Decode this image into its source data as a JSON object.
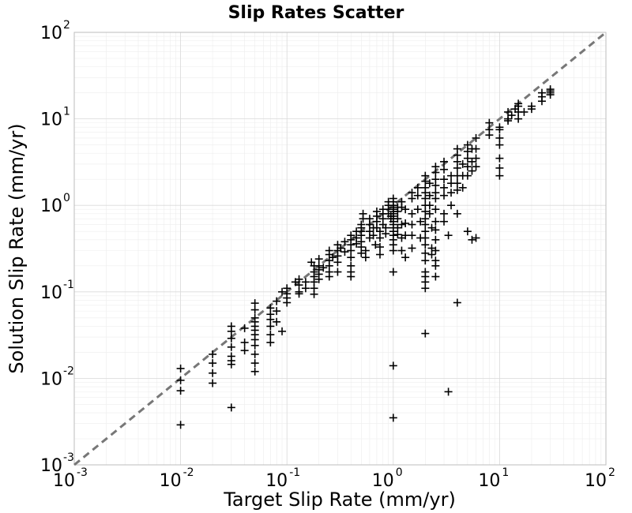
{
  "chart_data": {
    "type": "scatter",
    "title": "Slip Rates Scatter",
    "xlabel": "Target Slip Rate (mm/yr)",
    "ylabel": "Solution Slip Rate (mm/yr)",
    "xscale": "log",
    "yscale": "log",
    "xlim": [
      0.001,
      100
    ],
    "ylim": [
      0.001,
      100
    ],
    "x_ticks": [
      {
        "base": "10",
        "exp": "-3"
      },
      {
        "base": "10",
        "exp": "-2"
      },
      {
        "base": "10",
        "exp": "-1"
      },
      {
        "base": "10",
        "exp": "0"
      },
      {
        "base": "10",
        "exp": "1"
      },
      {
        "base": "10",
        "exp": "2"
      }
    ],
    "y_ticks": [
      {
        "base": "10",
        "exp": "-3"
      },
      {
        "base": "10",
        "exp": "-2"
      },
      {
        "base": "10",
        "exp": "-1"
      },
      {
        "base": "10",
        "exp": "0"
      },
      {
        "base": "10",
        "exp": "1"
      },
      {
        "base": "10",
        "exp": "2"
      }
    ],
    "grid": true,
    "marker": "+",
    "marker_color": "#000000",
    "reference_line": {
      "style": "dashed",
      "color": "#777777",
      "x": [
        0.001,
        100
      ],
      "y": [
        0.001,
        100
      ]
    },
    "points": [
      [
        0.01,
        0.013
      ],
      [
        0.01,
        0.0095
      ],
      [
        0.01,
        0.0072
      ],
      [
        0.01,
        0.0029
      ],
      [
        0.02,
        0.019
      ],
      [
        0.02,
        0.015
      ],
      [
        0.02,
        0.0115
      ],
      [
        0.02,
        0.0088
      ],
      [
        0.03,
        0.04
      ],
      [
        0.03,
        0.035
      ],
      [
        0.03,
        0.029
      ],
      [
        0.03,
        0.023
      ],
      [
        0.03,
        0.018
      ],
      [
        0.03,
        0.016
      ],
      [
        0.03,
        0.0145
      ],
      [
        0.03,
        0.0046
      ],
      [
        0.04,
        0.038
      ],
      [
        0.04,
        0.026
      ],
      [
        0.04,
        0.021
      ],
      [
        0.05,
        0.074
      ],
      [
        0.05,
        0.062
      ],
      [
        0.05,
        0.05
      ],
      [
        0.05,
        0.045
      ],
      [
        0.05,
        0.04
      ],
      [
        0.05,
        0.036
      ],
      [
        0.05,
        0.032
      ],
      [
        0.05,
        0.028
      ],
      [
        0.05,
        0.024
      ],
      [
        0.05,
        0.019
      ],
      [
        0.05,
        0.015
      ],
      [
        0.05,
        0.012
      ],
      [
        0.07,
        0.065
      ],
      [
        0.07,
        0.055
      ],
      [
        0.07,
        0.048
      ],
      [
        0.07,
        0.04
      ],
      [
        0.07,
        0.032
      ],
      [
        0.07,
        0.026
      ],
      [
        0.08,
        0.078
      ],
      [
        0.08,
        0.06
      ],
      [
        0.08,
        0.045
      ],
      [
        0.09,
        0.035
      ],
      [
        0.1,
        0.11
      ],
      [
        0.1,
        0.095
      ],
      [
        0.1,
        0.085
      ],
      [
        0.1,
        0.075
      ],
      [
        0.09,
        0.1
      ],
      [
        0.13,
        0.14
      ],
      [
        0.13,
        0.12
      ],
      [
        0.13,
        0.1
      ],
      [
        0.13,
        0.095
      ],
      [
        0.12,
        0.13
      ],
      [
        0.15,
        0.13
      ],
      [
        0.15,
        0.11
      ],
      [
        0.18,
        0.2
      ],
      [
        0.18,
        0.17
      ],
      [
        0.18,
        0.15
      ],
      [
        0.18,
        0.13
      ],
      [
        0.18,
        0.11
      ],
      [
        0.18,
        0.094
      ],
      [
        0.17,
        0.22
      ],
      [
        0.2,
        0.24
      ],
      [
        0.2,
        0.2
      ],
      [
        0.2,
        0.18
      ],
      [
        0.2,
        0.16
      ],
      [
        0.2,
        0.14
      ],
      [
        0.22,
        0.19
      ],
      [
        0.25,
        0.3
      ],
      [
        0.25,
        0.27
      ],
      [
        0.25,
        0.23
      ],
      [
        0.25,
        0.2
      ],
      [
        0.25,
        0.17
      ],
      [
        0.25,
        0.15
      ],
      [
        0.27,
        0.25
      ],
      [
        0.3,
        0.35
      ],
      [
        0.3,
        0.3
      ],
      [
        0.3,
        0.26
      ],
      [
        0.3,
        0.22
      ],
      [
        0.3,
        0.17
      ],
      [
        0.32,
        0.32
      ],
      [
        0.35,
        0.38
      ],
      [
        0.35,
        0.29
      ],
      [
        0.4,
        0.45
      ],
      [
        0.4,
        0.4
      ],
      [
        0.4,
        0.35
      ],
      [
        0.4,
        0.3
      ],
      [
        0.4,
        0.25
      ],
      [
        0.4,
        0.2
      ],
      [
        0.4,
        0.17
      ],
      [
        0.4,
        0.15
      ],
      [
        0.45,
        0.5
      ],
      [
        0.45,
        0.42
      ],
      [
        0.45,
        0.36
      ],
      [
        0.5,
        0.6
      ],
      [
        0.5,
        0.55
      ],
      [
        0.5,
        0.5
      ],
      [
        0.5,
        0.45
      ],
      [
        0.5,
        0.38
      ],
      [
        0.5,
        0.33
      ],
      [
        0.5,
        0.28
      ],
      [
        0.55,
        0.25
      ],
      [
        0.55,
        0.3
      ],
      [
        0.52,
        0.8
      ],
      [
        0.52,
        0.7
      ],
      [
        0.6,
        0.7
      ],
      [
        0.6,
        0.6
      ],
      [
        0.6,
        0.5
      ],
      [
        0.6,
        0.42
      ],
      [
        0.65,
        0.55
      ],
      [
        0.65,
        0.45
      ],
      [
        0.68,
        0.35
      ],
      [
        0.7,
        0.85
      ],
      [
        0.7,
        0.75
      ],
      [
        0.7,
        0.65
      ],
      [
        0.7,
        0.55
      ],
      [
        0.75,
        0.5
      ],
      [
        0.75,
        0.42
      ],
      [
        0.75,
        0.33
      ],
      [
        0.75,
        0.27
      ],
      [
        0.8,
        0.9
      ],
      [
        0.8,
        0.8
      ],
      [
        0.8,
        0.7
      ],
      [
        0.8,
        0.6
      ],
      [
        0.85,
        0.55
      ],
      [
        0.85,
        0.47
      ],
      [
        0.9,
        1.1
      ],
      [
        0.9,
        1.0
      ],
      [
        0.9,
        0.9
      ],
      [
        0.9,
        0.8
      ],
      [
        0.95,
        0.75
      ],
      [
        0.95,
        0.7
      ],
      [
        1.0,
        1.2
      ],
      [
        1.0,
        1.1
      ],
      [
        1.0,
        1.0
      ],
      [
        1.0,
        0.95
      ],
      [
        1.0,
        0.9
      ],
      [
        1.0,
        0.85
      ],
      [
        1.0,
        0.8
      ],
      [
        1.0,
        0.75
      ],
      [
        1.0,
        0.7
      ],
      [
        1.0,
        0.65
      ],
      [
        1.0,
        0.6
      ],
      [
        1.0,
        0.55
      ],
      [
        1.0,
        0.5
      ],
      [
        1.0,
        0.45
      ],
      [
        1.0,
        0.4
      ],
      [
        1.0,
        0.35
      ],
      [
        1.0,
        0.3
      ],
      [
        1.0,
        0.17
      ],
      [
        1.0,
        0.014
      ],
      [
        1.0,
        0.0035
      ],
      [
        1.1,
        0.95
      ],
      [
        1.1,
        0.85
      ],
      [
        1.1,
        0.7
      ],
      [
        1.1,
        0.55
      ],
      [
        1.1,
        0.46
      ],
      [
        1.2,
        1.1
      ],
      [
        1.2,
        0.95
      ],
      [
        1.2,
        0.6
      ],
      [
        1.2,
        0.42
      ],
      [
        1.2,
        0.3
      ],
      [
        1.3,
        0.25
      ],
      [
        1.3,
        0.9
      ],
      [
        1.3,
        0.62
      ],
      [
        1.3,
        0.45
      ],
      [
        1.5,
        1.4
      ],
      [
        1.5,
        1.2
      ],
      [
        1.5,
        0.8
      ],
      [
        1.5,
        0.6
      ],
      [
        1.5,
        0.45
      ],
      [
        1.5,
        0.32
      ],
      [
        1.7,
        1.6
      ],
      [
        1.7,
        1.3
      ],
      [
        1.7,
        0.9
      ],
      [
        1.8,
        0.65
      ],
      [
        1.8,
        0.42
      ],
      [
        2.0,
        2.2
      ],
      [
        2.0,
        1.9
      ],
      [
        2.0,
        1.6
      ],
      [
        2.0,
        1.4
      ],
      [
        2.0,
        1.2
      ],
      [
        2.0,
        1.0
      ],
      [
        2.0,
        0.85
      ],
      [
        2.0,
        0.7
      ],
      [
        2.0,
        0.6
      ],
      [
        2.0,
        0.5
      ],
      [
        2.0,
        0.42
      ],
      [
        2.0,
        0.35
      ],
      [
        2.0,
        0.28
      ],
      [
        2.0,
        0.23
      ],
      [
        2.0,
        0.17
      ],
      [
        2.0,
        0.15
      ],
      [
        2.0,
        0.13
      ],
      [
        2.0,
        0.11
      ],
      [
        2.0,
        0.033
      ],
      [
        2.2,
        1.8
      ],
      [
        2.2,
        1.3
      ],
      [
        2.2,
        1.0
      ],
      [
        2.2,
        0.8
      ],
      [
        2.3,
        0.55
      ],
      [
        2.3,
        0.32
      ],
      [
        2.3,
        0.27
      ],
      [
        2.5,
        2.8
      ],
      [
        2.5,
        2.4
      ],
      [
        2.5,
        2.0
      ],
      [
        2.5,
        1.7
      ],
      [
        2.5,
        1.4
      ],
      [
        2.5,
        1.2
      ],
      [
        2.5,
        0.9
      ],
      [
        2.5,
        0.65
      ],
      [
        2.5,
        0.52
      ],
      [
        2.5,
        0.4
      ],
      [
        2.5,
        0.3
      ],
      [
        2.5,
        0.23
      ],
      [
        2.5,
        0.2
      ],
      [
        2.5,
        0.15
      ],
      [
        3.0,
        3.2
      ],
      [
        3.0,
        2.6
      ],
      [
        3.0,
        2.0
      ],
      [
        3.0,
        1.6
      ],
      [
        3.0,
        1.3
      ],
      [
        3.0,
        0.8
      ],
      [
        3.0,
        0.65
      ],
      [
        3.3,
        0.45
      ],
      [
        3.3,
        0.007
      ],
      [
        3.5,
        2.2
      ],
      [
        3.5,
        1.8
      ],
      [
        3.5,
        1.4
      ],
      [
        3.5,
        1.0
      ],
      [
        4.0,
        4.5
      ],
      [
        4.0,
        3.8
      ],
      [
        4.0,
        3.2
      ],
      [
        4.0,
        2.7
      ],
      [
        4.0,
        2.2
      ],
      [
        4.0,
        1.8
      ],
      [
        4.0,
        1.5
      ],
      [
        4.0,
        0.8
      ],
      [
        4.0,
        0.075
      ],
      [
        4.5,
        3.0
      ],
      [
        4.5,
        2.2
      ],
      [
        4.5,
        1.6
      ],
      [
        5.0,
        5.0
      ],
      [
        5.0,
        4.2
      ],
      [
        5.0,
        3.5
      ],
      [
        5.0,
        2.8
      ],
      [
        5.0,
        2.2
      ],
      [
        5.0,
        0.5
      ],
      [
        5.5,
        4.5
      ],
      [
        5.5,
        3.2
      ],
      [
        5.5,
        2.5
      ],
      [
        5.5,
        0.4
      ],
      [
        6.0,
        6.0
      ],
      [
        6.0,
        4.5
      ],
      [
        6.0,
        3.5
      ],
      [
        6.0,
        2.8
      ],
      [
        6.0,
        0.42
      ],
      [
        8.0,
        9.0
      ],
      [
        8.0,
        7.5
      ],
      [
        8.0,
        6.5
      ],
      [
        10.0,
        8.0
      ],
      [
        10.0,
        7.5
      ],
      [
        10.0,
        6.0
      ],
      [
        10.0,
        5.0
      ],
      [
        10.0,
        3.5
      ],
      [
        10.0,
        2.7
      ],
      [
        10.0,
        2.2
      ],
      [
        12.0,
        12.0
      ],
      [
        12.0,
        10.0
      ],
      [
        12.0,
        9.5
      ],
      [
        13.0,
        11.0
      ],
      [
        14.0,
        13.0
      ],
      [
        15.0,
        15.0
      ],
      [
        15.0,
        14.0
      ],
      [
        15.0,
        12.0
      ],
      [
        15.0,
        10.0
      ],
      [
        17.0,
        12.0
      ],
      [
        20.0,
        14.0
      ],
      [
        20.0,
        13.0
      ],
      [
        25.0,
        20.0
      ],
      [
        25.0,
        18.0
      ],
      [
        25.0,
        16.0
      ],
      [
        30.0,
        22.0
      ],
      [
        30.0,
        21.0
      ],
      [
        30.0,
        20.0
      ],
      [
        30.0,
        19.0
      ]
    ]
  }
}
